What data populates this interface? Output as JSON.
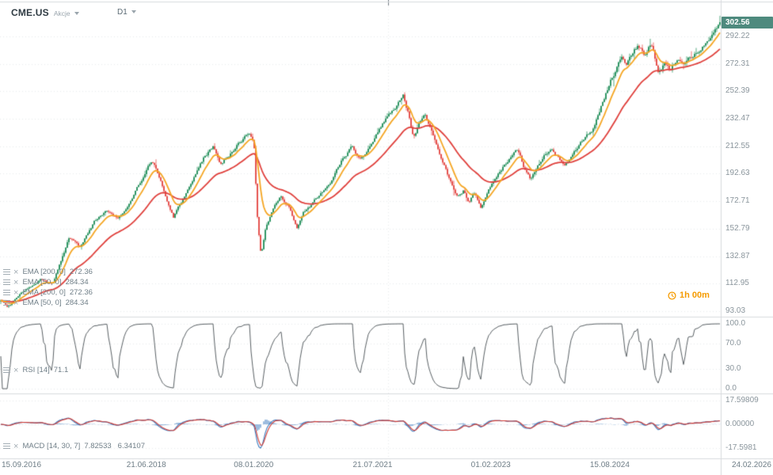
{
  "header": {
    "symbol": "CME.US",
    "market_label": "Akcje",
    "timeframe": "D1"
  },
  "main_pane": {
    "countdown": "1h 00m"
  },
  "price_axis": {
    "last_price_label": "302.56"
  },
  "legends": {
    "overlays": [
      {
        "label": "EMA [200, 0]",
        "values": [
          "272.36"
        ]
      },
      {
        "label": "EMA [50, 0]",
        "values": [
          "284.34"
        ]
      },
      {
        "label": "EMA [200, 0]",
        "values": [
          "272.36"
        ]
      },
      {
        "label": "EMA [50, 0]",
        "values": [
          "284.34"
        ]
      }
    ],
    "rsi": {
      "label": "RSI [14]",
      "values": [
        "71.1"
      ]
    },
    "macd": {
      "label": "MACD [14, 30, 7]",
      "values": [
        "7.82533",
        "6.34107"
      ]
    }
  },
  "colors": {
    "candle_up": "#12874f",
    "candle_down": "#e23a36",
    "ema_fast": "#f5a623",
    "ema_slow": "#e0403c",
    "rsi_line": "#474f54",
    "macd_line": "#3a7bbf",
    "macd_signal": "#d03a34",
    "badge_bg": "#4e8a7e",
    "countdown": "#f59b00"
  },
  "chart_data": {
    "type": "candlestick",
    "title": "CME.US D1",
    "candle_count": 455,
    "last_price": 302.56,
    "x_axis": {
      "labels": [
        "15.09.2016",
        "21.06.2018",
        "08.01.2020",
        "21.07.2021",
        "01.02.2023",
        "15.08.2024",
        "24.02.2026"
      ],
      "label_positions": [
        0,
        0.203,
        0.352,
        0.517,
        0.681,
        0.846,
        1
      ]
    },
    "y_axis": {
      "ticks": [
        292.22,
        272.31,
        252.39,
        232.47,
        212.55,
        192.63,
        172.71,
        152.79,
        132.87,
        112.95,
        93.03
      ],
      "range": [
        88,
        312
      ]
    },
    "price_path": [
      [
        0.0,
        101
      ],
      [
        0.01,
        96
      ],
      [
        0.03,
        107
      ],
      [
        0.055,
        116
      ],
      [
        0.072,
        112
      ],
      [
        0.095,
        146
      ],
      [
        0.11,
        140
      ],
      [
        0.13,
        158
      ],
      [
        0.148,
        165
      ],
      [
        0.163,
        160
      ],
      [
        0.183,
        176
      ],
      [
        0.2,
        192
      ],
      [
        0.21,
        202
      ],
      [
        0.222,
        188
      ],
      [
        0.24,
        161
      ],
      [
        0.252,
        172
      ],
      [
        0.268,
        188
      ],
      [
        0.283,
        204
      ],
      [
        0.296,
        213
      ],
      [
        0.305,
        200
      ],
      [
        0.317,
        206
      ],
      [
        0.33,
        214
      ],
      [
        0.344,
        221
      ],
      [
        0.352,
        217
      ],
      [
        0.357,
        160
      ],
      [
        0.362,
        133
      ],
      [
        0.368,
        152
      ],
      [
        0.378,
        166
      ],
      [
        0.39,
        176
      ],
      [
        0.402,
        168
      ],
      [
        0.412,
        152
      ],
      [
        0.42,
        164
      ],
      [
        0.434,
        171
      ],
      [
        0.448,
        180
      ],
      [
        0.463,
        190
      ],
      [
        0.477,
        204
      ],
      [
        0.489,
        212
      ],
      [
        0.499,
        203
      ],
      [
        0.51,
        210
      ],
      [
        0.521,
        221
      ],
      [
        0.534,
        230
      ],
      [
        0.547,
        239
      ],
      [
        0.559,
        251
      ],
      [
        0.567,
        236
      ],
      [
        0.574,
        219
      ],
      [
        0.582,
        229
      ],
      [
        0.59,
        234
      ],
      [
        0.6,
        222
      ],
      [
        0.611,
        206
      ],
      [
        0.623,
        190
      ],
      [
        0.634,
        176
      ],
      [
        0.644,
        181
      ],
      [
        0.651,
        171
      ],
      [
        0.659,
        178
      ],
      [
        0.667,
        167
      ],
      [
        0.677,
        179
      ],
      [
        0.689,
        191
      ],
      [
        0.7,
        199
      ],
      [
        0.71,
        205
      ],
      [
        0.719,
        210
      ],
      [
        0.728,
        197
      ],
      [
        0.737,
        189
      ],
      [
        0.747,
        199
      ],
      [
        0.757,
        207
      ],
      [
        0.767,
        211
      ],
      [
        0.775,
        204
      ],
      [
        0.784,
        198
      ],
      [
        0.794,
        206
      ],
      [
        0.804,
        212
      ],
      [
        0.814,
        219
      ],
      [
        0.824,
        226
      ],
      [
        0.836,
        243
      ],
      [
        0.847,
        259
      ],
      [
        0.856,
        269
      ],
      [
        0.863,
        277
      ],
      [
        0.87,
        270
      ],
      [
        0.878,
        279
      ],
      [
        0.886,
        285
      ],
      [
        0.895,
        279
      ],
      [
        0.904,
        287
      ],
      [
        0.914,
        268
      ],
      [
        0.923,
        274
      ],
      [
        0.931,
        270
      ],
      [
        0.939,
        276
      ],
      [
        0.948,
        272
      ],
      [
        0.957,
        277
      ],
      [
        0.966,
        281
      ],
      [
        0.975,
        285
      ],
      [
        0.986,
        291
      ],
      [
        0.995,
        296
      ],
      [
        1.0,
        302.56
      ]
    ],
    "overlays": [
      {
        "type": "EMA",
        "params": [
          200,
          0
        ],
        "last_value": 272.36,
        "color": "#e0403c"
      },
      {
        "type": "EMA",
        "params": [
          50,
          0
        ],
        "last_value": 284.34,
        "color": "#f5a623"
      },
      {
        "type": "EMA",
        "params": [
          200,
          0
        ],
        "last_value": 272.36,
        "color": "#e0403c"
      },
      {
        "type": "EMA",
        "params": [
          50,
          0
        ],
        "last_value": 284.34,
        "color": "#f5a623"
      }
    ],
    "lower_panes": [
      {
        "type": "RSI",
        "params": [
          14
        ],
        "last_value": 71.1,
        "ticks": [
          100,
          70,
          30,
          0
        ]
      },
      {
        "type": "MACD",
        "params": [
          14,
          30,
          7
        ],
        "last_values": [
          7.82533,
          6.34107
        ],
        "ticks": [
          17.59809,
          0,
          -17.5981
        ],
        "tick_labels": [
          "17.59809",
          "0.00000",
          "-17.5981"
        ]
      }
    ]
  }
}
